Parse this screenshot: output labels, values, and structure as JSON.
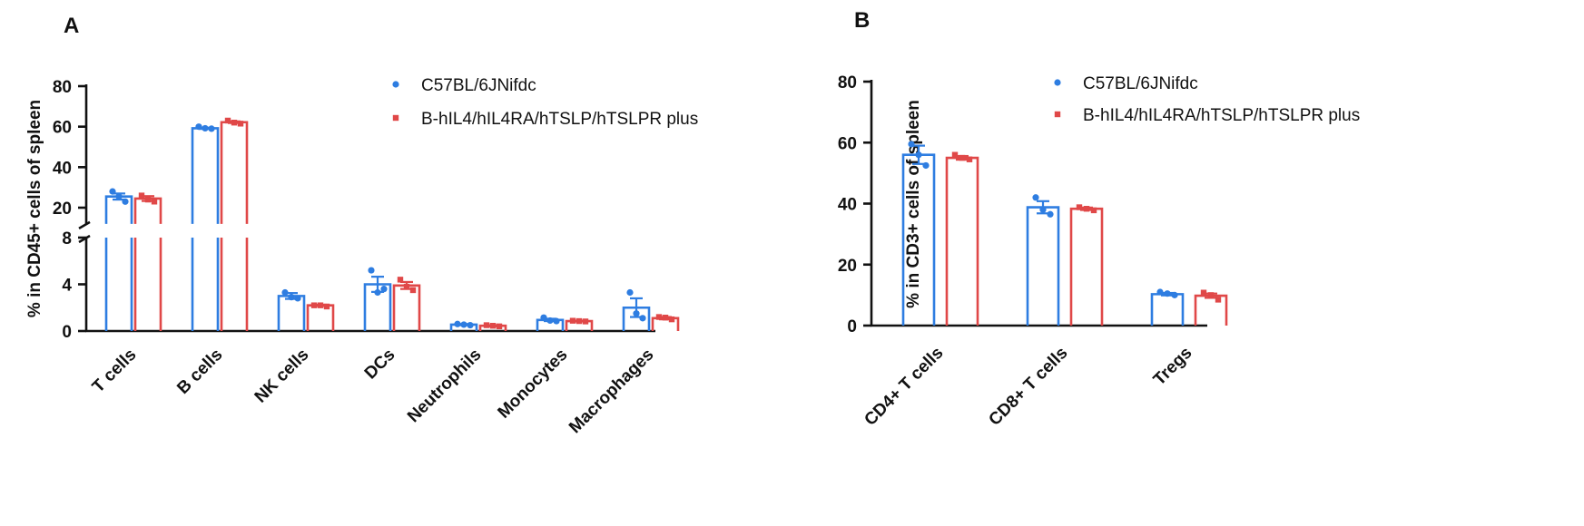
{
  "colors": {
    "c57": "#2e7de1",
    "bhil4": "#e04848"
  },
  "chart_data": [
    {
      "panel": "A",
      "type": "bar",
      "ylabel": "% in CD45+ cells of spleen",
      "axis_break": {
        "lower_range": [
          0,
          8
        ],
        "upper_range": [
          12,
          80
        ]
      },
      "lower_ticks": [
        "0",
        "4",
        "8"
      ],
      "upper_ticks": [
        "20",
        "40",
        "60",
        "80"
      ],
      "categories": [
        "T cells",
        "B cells",
        "NK cells",
        "DCs",
        "Neutrophils",
        "Monocytes",
        "Macrophages"
      ],
      "legend": {
        "position": "top-right"
      },
      "series": [
        {
          "name": "C57BL/6JNifdc",
          "color": "#2e7de1",
          "marker": "circle",
          "values": [
            25.5,
            59.2,
            3.0,
            4.0,
            0.55,
            0.95,
            2.0
          ],
          "sem": [
            1.5,
            0.3,
            0.25,
            0.65,
            0.05,
            0.1,
            0.8
          ],
          "points": [
            [
              28.0,
              25.5,
              23.0
            ],
            [
              60.0,
              59.2,
              59.0
            ],
            [
              3.3,
              2.9,
              2.8
            ],
            [
              5.2,
              3.3,
              3.6
            ],
            [
              0.6,
              0.55,
              0.5
            ],
            [
              1.15,
              0.9,
              0.85
            ],
            [
              3.3,
              1.5,
              1.1
            ]
          ]
        },
        {
          "name": "B-hIL4/hIL4RA/hTSLP/hTSLPR plus",
          "color": "#e04848",
          "marker": "square",
          "values": [
            24.5,
            62.2,
            2.2,
            3.9,
            0.45,
            0.85,
            1.1
          ],
          "sem": [
            1.2,
            0.4,
            0.05,
            0.3,
            0.05,
            0.03,
            0.1
          ],
          "points": [
            [
              26.0,
              24.0,
              23.0
            ],
            [
              63.0,
              62.0,
              61.5
            ],
            [
              2.2,
              2.2,
              2.1
            ],
            [
              4.4,
              3.8,
              3.5
            ],
            [
              0.5,
              0.45,
              0.4
            ],
            [
              0.88,
              0.85,
              0.82
            ],
            [
              1.2,
              1.15,
              1.0
            ]
          ]
        }
      ]
    },
    {
      "panel": "B",
      "type": "bar",
      "ylabel": "% in CD3+ cells of spleen",
      "ylim": [
        0,
        80
      ],
      "ticks": [
        "0",
        "20",
        "40",
        "60",
        "80"
      ],
      "categories": [
        "CD4+ T cells",
        "CD8+ T cells",
        "Tregs"
      ],
      "legend": {
        "position": "top-right"
      },
      "series": [
        {
          "name": "C57BL/6JNifdc",
          "color": "#2e7de1",
          "marker": "circle",
          "values": [
            56.0,
            38.8,
            10.3
          ],
          "sem": [
            3.0,
            2.0,
            0.4
          ],
          "points": [
            [
              59.5,
              56.0,
              52.5
            ],
            [
              42.0,
              38.0,
              36.5
            ],
            [
              11.0,
              10.5,
              10.0
            ]
          ]
        },
        {
          "name": "B-hIL4/hIL4RA/hTSLP/hTSLPR plus",
          "color": "#e04848",
          "marker": "square",
          "values": [
            55.0,
            38.3,
            9.8
          ],
          "sem": [
            0.6,
            0.4,
            0.7
          ],
          "points": [
            [
              56.0,
              55.0,
              54.5
            ],
            [
              38.8,
              38.3,
              37.8
            ],
            [
              10.8,
              10.0,
              8.5
            ]
          ]
        }
      ]
    }
  ]
}
